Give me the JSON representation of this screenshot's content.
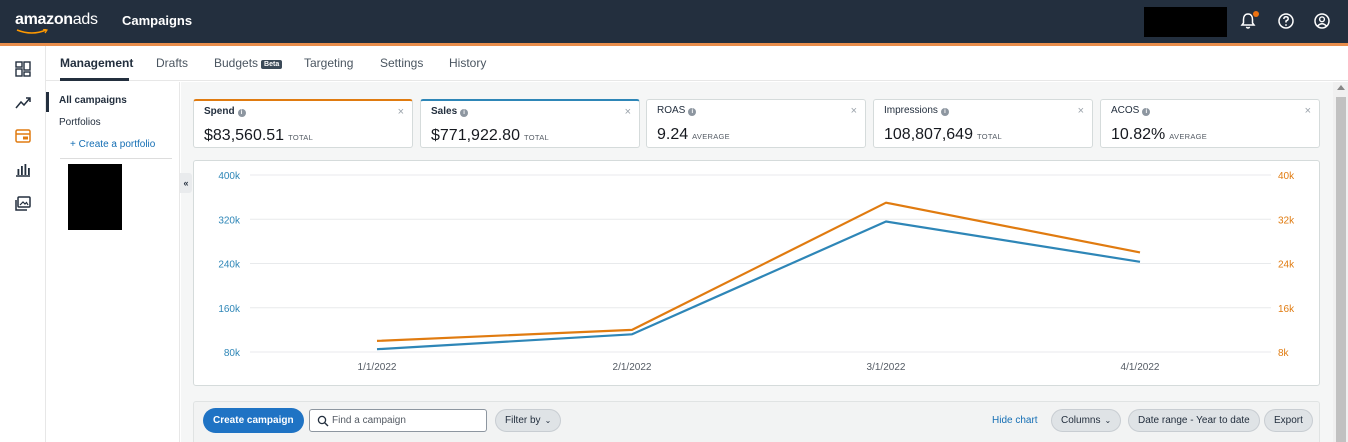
{
  "header": {
    "logo_part1": "amazon",
    "logo_part2": "ads",
    "title": "Campaigns"
  },
  "tabs": [
    {
      "label": "Management"
    },
    {
      "label": "Drafts"
    },
    {
      "label": "Budgets",
      "badge": "Beta"
    },
    {
      "label": "Targeting"
    },
    {
      "label": "Settings"
    },
    {
      "label": "History"
    }
  ],
  "sidebar": {
    "items": [
      {
        "label": "All campaigns"
      },
      {
        "label": "Portfolios"
      }
    ],
    "create_portfolio": "+ Create a portfolio",
    "collapse_label": "«"
  },
  "metrics": [
    {
      "label": "Spend",
      "value": "$83,560.51",
      "unit": "TOTAL",
      "selected_color": "#e07b10"
    },
    {
      "label": "Sales",
      "value": "$771,922.80",
      "unit": "TOTAL",
      "selected_color": "#2e86b7"
    },
    {
      "label": "ROAS",
      "value": "9.24",
      "unit": "AVERAGE"
    },
    {
      "label": "Impressions",
      "value": "108,807,649",
      "unit": "TOTAL"
    },
    {
      "label": "ACOS",
      "value": "10.82%",
      "unit": "AVERAGE"
    }
  ],
  "chart_data": {
    "type": "line",
    "x": [
      "1/1/2022",
      "2/1/2022",
      "3/1/2022",
      "4/1/2022"
    ],
    "left_axis": {
      "ticks": [
        "400k",
        "320k",
        "240k",
        "160k",
        "80k"
      ],
      "range": [
        80000,
        400000
      ],
      "color": "#2e86b7"
    },
    "right_axis": {
      "ticks": [
        "40k",
        "32k",
        "24k",
        "16k",
        "8k"
      ],
      "range": [
        8000,
        40000
      ],
      "color": "#e07b10"
    },
    "series": [
      {
        "name": "Sales",
        "axis": "left",
        "color": "#2e86b7",
        "values": [
          85000,
          112000,
          316000,
          243000
        ]
      },
      {
        "name": "Spend",
        "axis": "right",
        "color": "#e07b10",
        "values": [
          10000,
          12000,
          35000,
          26000
        ]
      }
    ],
    "grid": true
  },
  "toolbar": {
    "create_campaign": "Create campaign",
    "search_placeholder": "Find a campaign",
    "filter_by": "Filter by",
    "hide_chart": "Hide chart",
    "columns": "Columns",
    "date_range": "Date range - Year to date",
    "export": "Export"
  },
  "colors": {
    "topbar": "#232f3e",
    "accent": "#e88d4b",
    "primary_button": "#1f73c4"
  }
}
